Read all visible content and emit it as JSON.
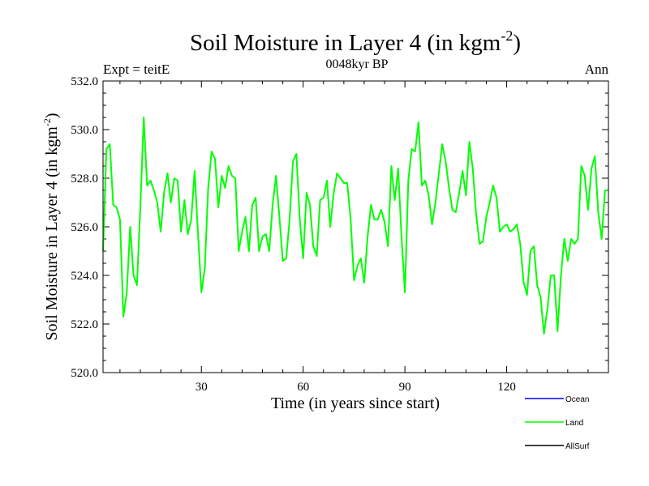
{
  "chart_data": {
    "type": "line",
    "title": "Soil Moisture in Layer 4 (in kgm",
    "title_superscript": "-2",
    "title_close": ")",
    "subtitle_left": "Expt = teitE",
    "subtitle_center": "0048kyr BP",
    "subtitle_right": "Ann",
    "xlabel": "Time (in years since start)",
    "ylabel": "Soil Moisture in Layer 4 (in kgm",
    "ylabel_superscript": "-2",
    "ylabel_close": ")",
    "xlim": [
      1,
      150
    ],
    "ylim": [
      520,
      532
    ],
    "xticks": [
      30,
      60,
      90,
      120
    ],
    "xtick_labels": [
      "30",
      "60",
      "90",
      "120"
    ],
    "yticks": [
      520,
      522,
      524,
      526,
      528,
      530,
      532
    ],
    "ytick_labels": [
      "520.0",
      "522.0",
      "524.0",
      "526.0",
      "528.0",
      "530.0",
      "532.0"
    ],
    "legend": [
      {
        "name": "Ocean",
        "color": "#0000ff"
      },
      {
        "name": "Land",
        "color": "#00ff00"
      },
      {
        "name": "AllSurf",
        "color": "#000000"
      }
    ],
    "series": [
      {
        "name": "Land",
        "color": "#00ff00",
        "x": [
          1,
          2,
          3,
          4,
          5,
          6,
          7,
          8,
          9,
          10,
          11,
          12,
          13,
          14,
          15,
          16,
          17,
          18,
          19,
          20,
          21,
          22,
          23,
          24,
          25,
          26,
          27,
          28,
          29,
          30,
          31,
          32,
          33,
          34,
          35,
          36,
          37,
          38,
          39,
          40,
          41,
          42,
          43,
          44,
          45,
          46,
          47,
          48,
          49,
          50,
          51,
          52,
          53,
          54,
          55,
          56,
          57,
          58,
          59,
          60,
          61,
          62,
          63,
          64,
          65,
          66,
          67,
          68,
          69,
          70,
          71,
          72,
          73,
          74,
          75,
          76,
          77,
          78,
          79,
          80,
          81,
          82,
          83,
          84,
          85,
          86,
          87,
          88,
          89,
          90,
          91,
          92,
          93,
          94,
          95,
          96,
          97,
          98,
          99,
          100,
          101,
          102,
          103,
          104,
          105,
          106,
          107,
          108,
          109,
          110,
          111,
          112,
          113,
          114,
          115,
          116,
          117,
          118,
          119,
          120,
          121,
          122,
          123,
          124,
          125,
          126,
          127,
          128,
          129,
          130,
          131,
          132,
          133,
          134,
          135,
          136,
          137,
          138,
          139,
          140,
          141,
          142,
          143,
          144,
          145,
          146,
          147,
          148,
          149,
          150
        ],
        "values": [
          525.0,
          529.2,
          529.4,
          526.9,
          526.8,
          526.3,
          522.3,
          523.3,
          526.0,
          524.0,
          523.6,
          526.8,
          530.5,
          527.7,
          527.9,
          527.5,
          527.0,
          525.8,
          527.4,
          528.2,
          527.0,
          528.0,
          527.9,
          525.8,
          527.1,
          525.7,
          526.3,
          528.3,
          525.7,
          523.3,
          524.3,
          527.6,
          529.1,
          528.8,
          526.8,
          528.1,
          527.6,
          528.5,
          528.1,
          528.0,
          525.0,
          525.8,
          526.4,
          525.0,
          526.9,
          527.2,
          525.0,
          525.6,
          525.7,
          525.0,
          526.9,
          528.1,
          526.4,
          524.6,
          524.7,
          526.3,
          528.7,
          529.0,
          526.3,
          524.7,
          527.4,
          526.9,
          525.2,
          524.8,
          527.1,
          527.2,
          527.9,
          526.0,
          527.4,
          528.2,
          528.0,
          527.8,
          527.8,
          526.3,
          523.8,
          524.4,
          524.7,
          523.7,
          525.6,
          526.9,
          526.3,
          526.3,
          526.7,
          526.2,
          525.2,
          528.5,
          527.1,
          528.4,
          525.6,
          523.3,
          527.9,
          529.2,
          529.1,
          530.3,
          527.7,
          527.9,
          527.3,
          526.1,
          527.0,
          528.2,
          529.4,
          528.7,
          527.6,
          526.7,
          526.6,
          527.4,
          528.3,
          527.3,
          529.5,
          528.4,
          526.5,
          525.3,
          525.4,
          526.4,
          527.0,
          527.7,
          527.2,
          525.8,
          526.0,
          526.1,
          525.8,
          525.9,
          526.1,
          525.3,
          523.7,
          523.2,
          525.0,
          525.2,
          523.6,
          523.1,
          521.6,
          522.6,
          524.0,
          524.0,
          521.7,
          524.0,
          525.5,
          524.6,
          525.5,
          525.3,
          525.5,
          528.5,
          528.1,
          526.7,
          528.4,
          528.9,
          526.6,
          525.5,
          527.5,
          527.5
        ]
      }
    ]
  }
}
